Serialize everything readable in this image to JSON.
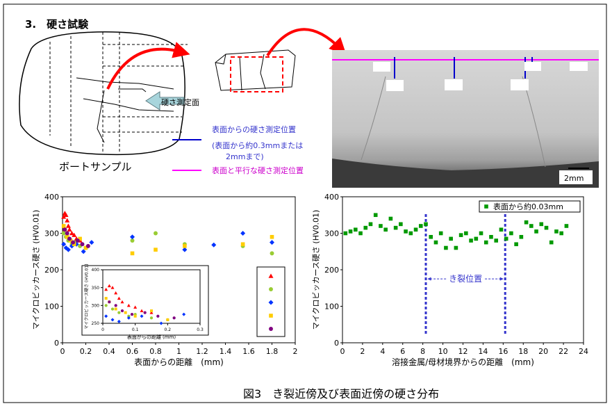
{
  "header": {
    "title": "3.　硬さ試験"
  },
  "diagram": {
    "surface_label": "硬さ測定面",
    "sample_label": "ボートサンプル",
    "legend_blue_1": "表面からの硬さ測定位置",
    "legend_blue_2": "(表面から約0.3mmまたは",
    "legend_blue_3": "2mmまで)",
    "legend_magenta": "表面と平行な硬さ測定位置",
    "scale_label": "2mm"
  },
  "caption": "図3　き裂近傍及び表面近傍の硬さ分布",
  "chart_data": [
    {
      "type": "scatter",
      "x_label": "表面からの距離　(mm)",
      "y_label": "マイクロビッカース硬さ (HV0.01)",
      "xlim": [
        0,
        2
      ],
      "ylim": [
        0,
        400
      ],
      "xticks": [
        0,
        0.2,
        0.4,
        0.6,
        0.8,
        1,
        1.2,
        1.4,
        1.6,
        1.8,
        2
      ],
      "yticks": [
        0,
        100,
        200,
        300,
        400
      ],
      "series": [
        {
          "color": "#ff0000",
          "marker": "triangle",
          "x": [
            0.01,
            0.02,
            0.03,
            0.04,
            0.05,
            0.06,
            0.08,
            0.1,
            0.12,
            0.15
          ],
          "values": [
            345,
            355,
            350,
            335,
            320,
            310,
            300,
            295,
            285,
            280
          ]
        },
        {
          "color": "#99cc33",
          "marker": "circle",
          "x": [
            0.01,
            0.03,
            0.05,
            0.08,
            0.1,
            0.15,
            0.2,
            0.6,
            0.8,
            1.05,
            1.55,
            1.8
          ],
          "values": [
            300,
            290,
            280,
            270,
            275,
            265,
            260,
            280,
            300,
            270,
            265,
            245
          ]
        },
        {
          "color": "#0033ff",
          "marker": "diamond",
          "x": [
            0.01,
            0.03,
            0.05,
            0.08,
            0.12,
            0.18,
            0.25,
            0.6,
            1.05,
            1.3,
            1.55,
            1.8
          ],
          "values": [
            270,
            260,
            255,
            265,
            270,
            250,
            275,
            290,
            255,
            268,
            300,
            275
          ]
        },
        {
          "color": "#ffcc00",
          "marker": "square",
          "x": [
            0.01,
            0.02,
            0.04,
            0.07,
            0.1,
            0.15,
            0.2,
            0.6,
            0.8,
            1.05,
            1.55,
            1.8
          ],
          "values": [
            320,
            310,
            290,
            280,
            270,
            285,
            260,
            245,
            255,
            265,
            270,
            290
          ]
        },
        {
          "color": "#800080",
          "marker": "circle",
          "x": [
            0.02,
            0.04,
            0.06,
            0.09,
            0.13,
            0.17,
            0.22
          ],
          "values": [
            310,
            300,
            285,
            275,
            280,
            270,
            265
          ]
        }
      ]
    },
    {
      "type": "inset",
      "x_label": "表面からの距離 (mm)",
      "y_label": "マイクロビッカース硬さ (HV0.01)",
      "xlim": [
        0,
        0.3
      ],
      "ylim": [
        250,
        400
      ],
      "xticks": [
        0,
        0.1,
        0.2,
        0.3
      ],
      "yticks": [
        250,
        300,
        350,
        400
      ]
    },
    {
      "type": "scatter",
      "x_label": "溶接金属/母材境界からの距離　(mm)",
      "y_label": "マイクロビッカース硬さ (HV0.01)",
      "xlim": [
        0,
        24
      ],
      "ylim": [
        0,
        400
      ],
      "xticks": [
        0,
        2,
        4,
        6,
        8,
        10,
        12,
        14,
        16,
        18,
        20,
        22,
        24
      ],
      "yticks": [
        0,
        100,
        200,
        300,
        400
      ],
      "annotation": "き裂位置",
      "crack_lines": [
        8.3,
        16.2
      ],
      "series": [
        {
          "name": "表面から約0.03mm",
          "color": "#009900",
          "marker": "square",
          "x": [
            0.3,
            0.8,
            1.3,
            1.8,
            2.3,
            2.8,
            3.3,
            3.8,
            4.3,
            4.8,
            5.3,
            5.8,
            6.3,
            6.8,
            7.3,
            7.8,
            8.3,
            8.8,
            9.3,
            9.8,
            10.3,
            10.8,
            11.3,
            11.8,
            12.3,
            12.8,
            13.3,
            13.8,
            14.3,
            14.8,
            15.3,
            15.8,
            16.3,
            16.8,
            17.3,
            17.8,
            18.3,
            18.8,
            19.3,
            19.8,
            20.3,
            20.8,
            21.3,
            21.8,
            22.3
          ],
          "values": [
            300,
            305,
            310,
            300,
            315,
            325,
            350,
            320,
            310,
            340,
            315,
            325,
            305,
            300,
            310,
            320,
            325,
            290,
            275,
            300,
            260,
            285,
            260,
            295,
            300,
            280,
            285,
            300,
            275,
            290,
            280,
            310,
            285,
            300,
            270,
            290,
            330,
            320,
            305,
            325,
            315,
            275,
            305,
            300,
            320
          ]
        }
      ]
    }
  ]
}
